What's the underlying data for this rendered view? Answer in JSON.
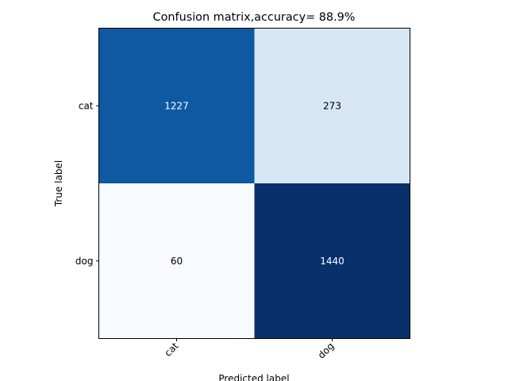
{
  "chart_data": {
    "type": "heatmap",
    "title": "Confusion matrix,accuracy= 88.9%",
    "xlabel": "Predicted label",
    "ylabel": "True label",
    "x_categories": [
      "cat",
      "dog"
    ],
    "y_categories": [
      "cat",
      "dog"
    ],
    "values": [
      [
        1227,
        273
      ],
      [
        60,
        1440
      ]
    ],
    "colormap": "Blues",
    "colorbar": false,
    "xtick_rotation": 45
  }
}
